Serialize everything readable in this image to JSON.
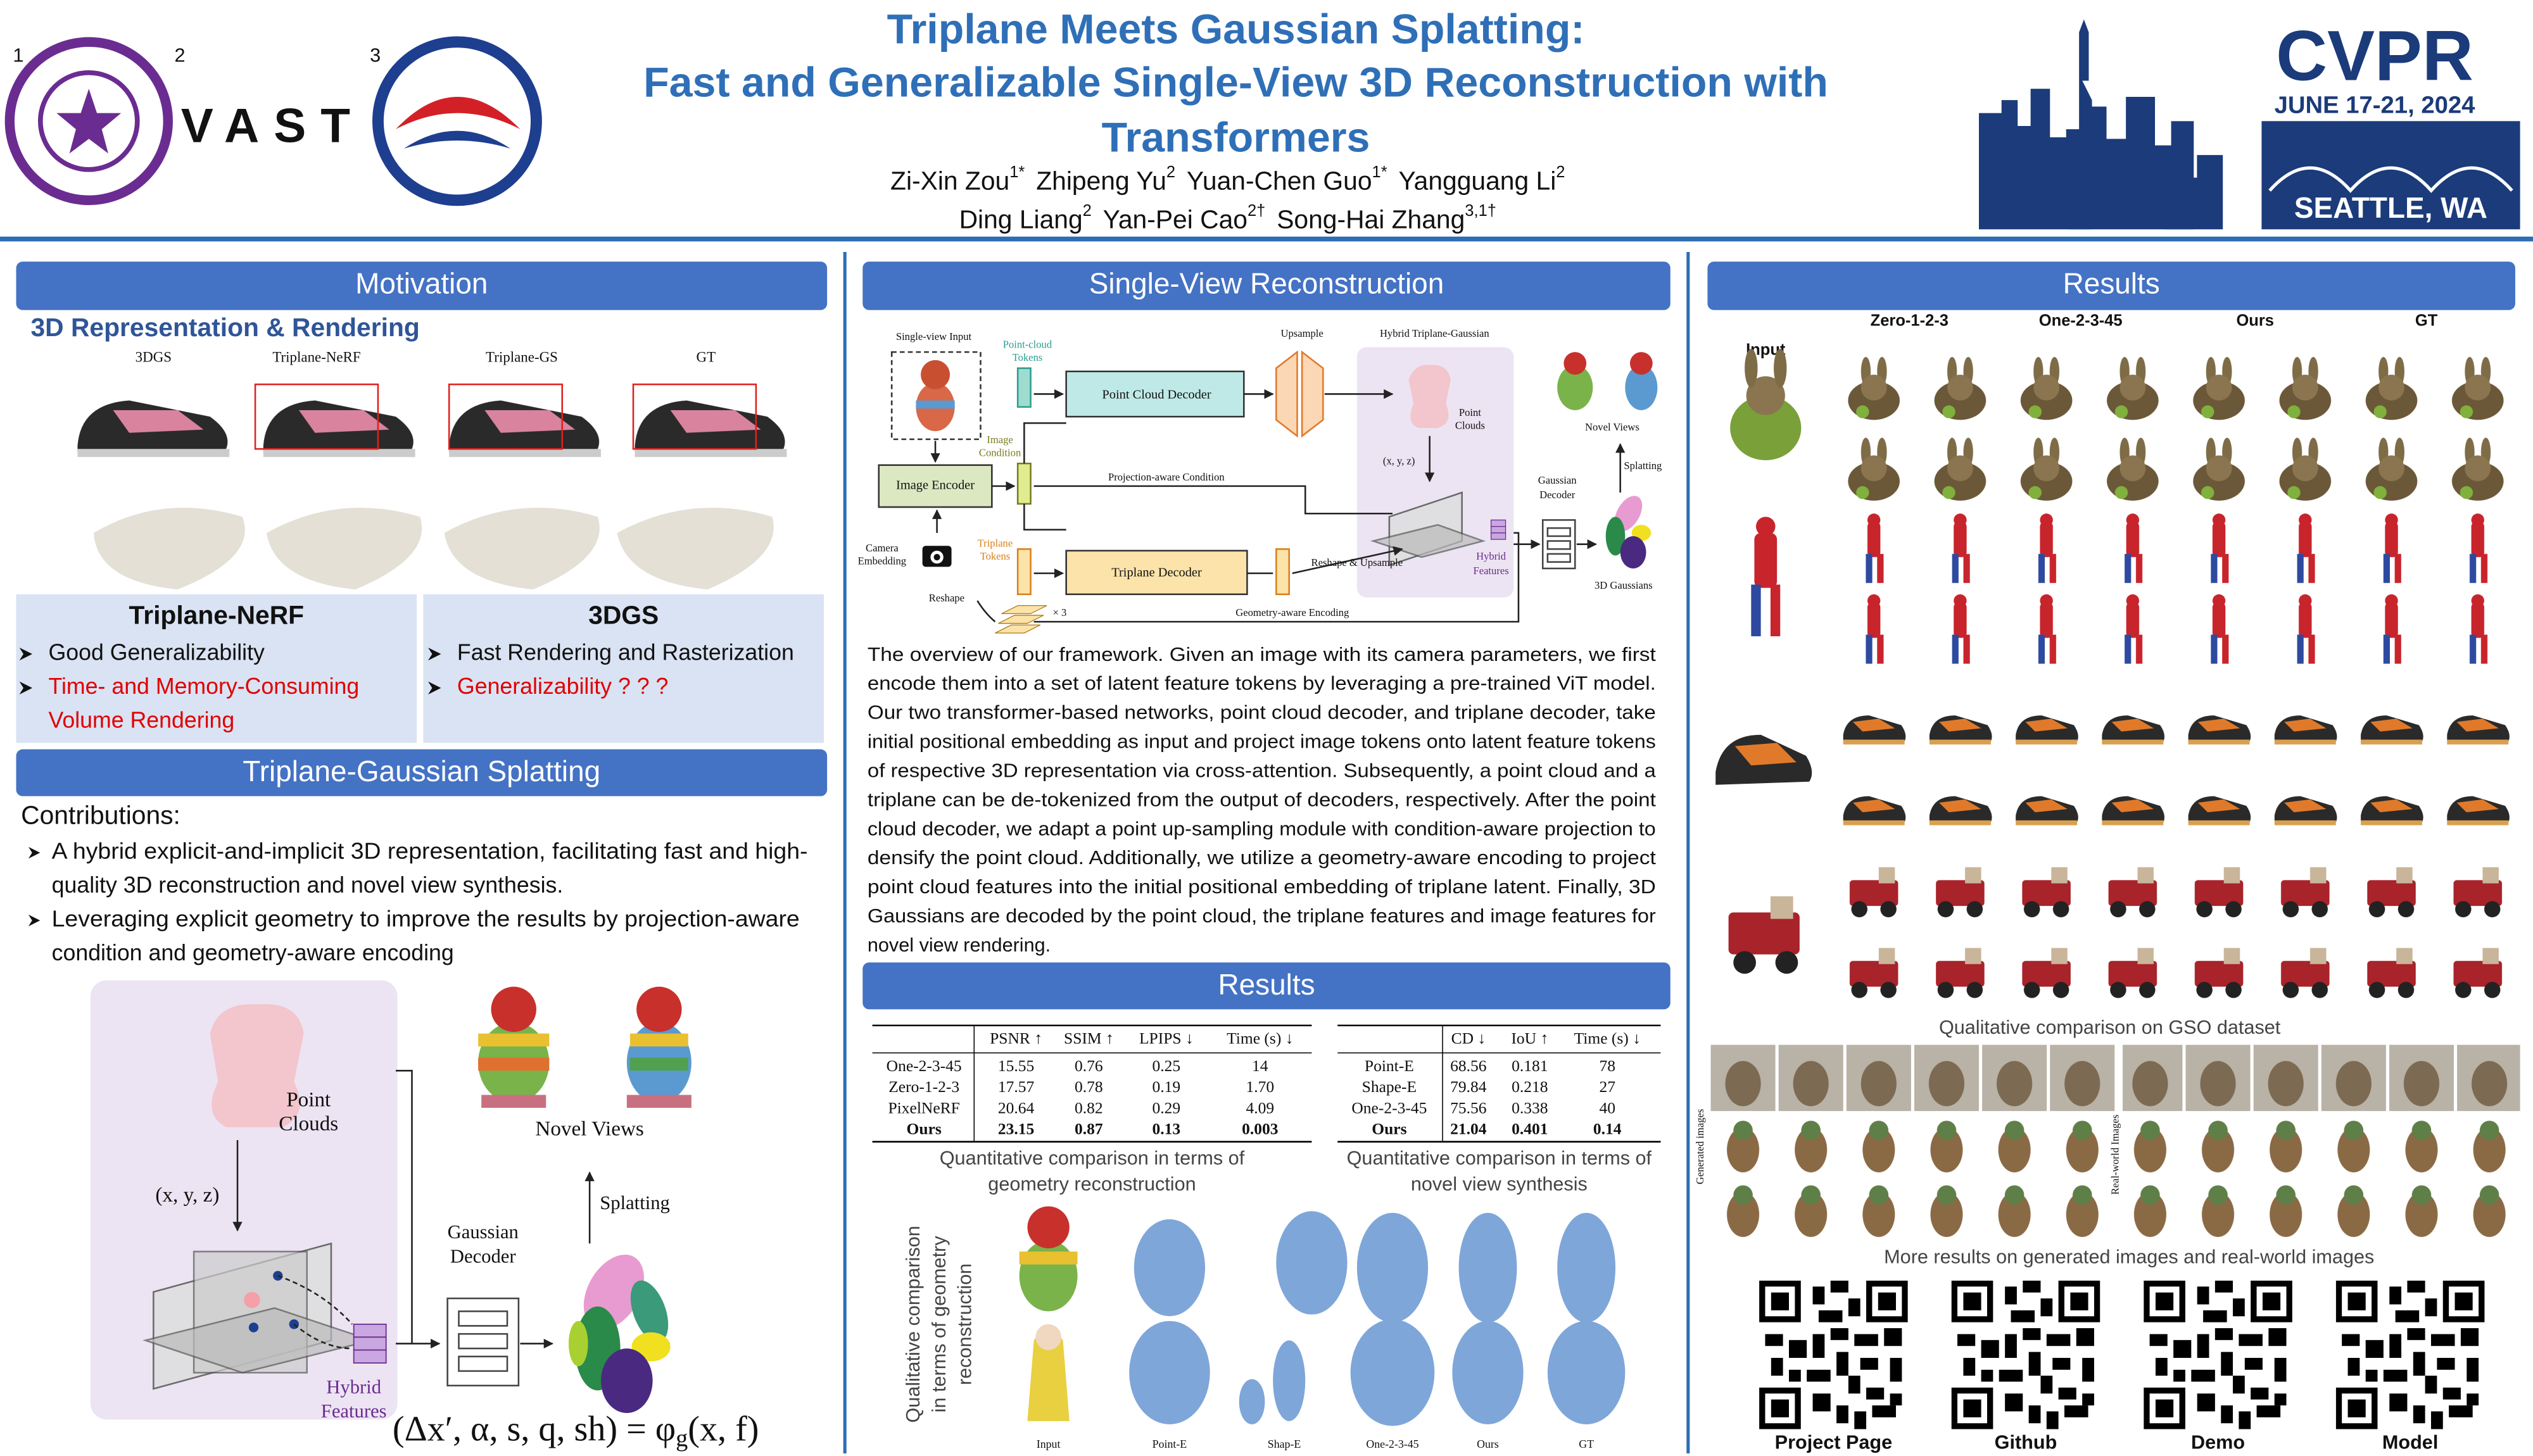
{
  "header": {
    "title": [
      "Triplane Meets Gaussian Splatting:",
      "Fast and Generalizable Single-View 3D Reconstruction with",
      "Transformers"
    ],
    "authors": [
      [
        {
          "name": "Zi-Xin Zou",
          "aff": "1*"
        },
        {
          "name": "Zhipeng Yu",
          "aff": "2"
        },
        {
          "name": "Yuan-Chen Guo",
          "aff": "1*"
        },
        {
          "name": "Yangguang Li",
          "aff": "2"
        }
      ],
      [
        {
          "name": "Ding Liang",
          "aff": "2"
        },
        {
          "name": "Yan-Pei Cao",
          "aff": "2†"
        },
        {
          "name": "Song-Hai Zhang",
          "aff": "3,1†"
        }
      ]
    ],
    "affiliation_marks": [
      "1",
      "2",
      "3"
    ],
    "vast_logo": "VAST",
    "conference": {
      "name": "CVPR",
      "dates": "JUNE 17-21, 2024",
      "location": "SEATTLE, WA"
    }
  },
  "motivation": {
    "heading": "Motivation",
    "subheading": "3D Representation & Rendering",
    "image_labels": [
      "3DGS",
      "Triplane-NeRF",
      "Triplane-GS",
      "GT"
    ],
    "comparison": [
      {
        "title": "Triplane-NeRF",
        "pros": [
          [
            "Good Generalizability"
          ]
        ],
        "cons": [
          [
            "Time- and Memory-Consuming",
            "Volume Rendering"
          ]
        ]
      },
      {
        "title": "3DGS",
        "pros": [
          [
            "Fast Rendering and Rasterization"
          ]
        ],
        "cons": [
          [
            "Generalizability ? ? ?"
          ]
        ]
      }
    ]
  },
  "triplane_gaussian_splatting": {
    "heading": "Triplane-Gaussian Splatting",
    "contributions_label": "Contributions:",
    "contributions": [
      [
        "A hybrid explicit-and-implicit 3D representation, facilitating fast and high-",
        "quality 3D reconstruction and novel view synthesis."
      ],
      [
        "Leveraging explicit geometry to improve the results by projection-aware",
        "condition and geometry-aware encoding"
      ]
    ],
    "figure": {
      "point_clouds": [
        "Point",
        "Clouds"
      ],
      "coordinates": "(x, y, z)",
      "hybrid_features": [
        "Hybrid",
        "Features"
      ],
      "gaussian_decoder": [
        "Gaussian",
        "Decoder"
      ],
      "novel_views": "Novel Views",
      "splatting": "Splatting",
      "equation": {
        "lhs": "(Δx′, α, s, q, sh) = φ",
        "subscript": "g",
        "rhs": "(x, f)"
      }
    }
  },
  "single_view_reconstruction": {
    "heading": "Single-View Reconstruction",
    "diagram": {
      "single_view_input": "Single-view Input",
      "point_cloud_tokens": [
        "Point-cloud",
        "Tokens"
      ],
      "point_cloud_decoder": "Point Cloud Decoder",
      "upsample": "Upsample",
      "hybrid_triplane_gaussian": "Hybrid Triplane-Gaussian",
      "point_clouds": [
        "Point",
        "Clouds"
      ],
      "coordinates": "(x, y, z)",
      "hybrid_features": [
        "Hybrid",
        "Features"
      ],
      "image_condition": [
        "Image",
        "Condition"
      ],
      "image_encoder": "Image Encoder",
      "projection_aware_condition": "Projection-aware Condition",
      "camera_embedding": [
        "Camera",
        "Embedding"
      ],
      "triplane_tokens": [
        "Triplane",
        "Tokens"
      ],
      "triplane_decoder": "Triplane Decoder",
      "reshape_upsample": "Reshape & Upsample",
      "reshape": "Reshape",
      "triplane_count": "× 3",
      "geometry_aware_encoding": "Geometry-aware  Encoding",
      "novel_views": "Novel Views",
      "splatting": "Splatting",
      "gaussian_decoder": [
        "Gaussian",
        "Decoder"
      ],
      "gaussians": "3D Gaussians"
    },
    "description": [
      "The overview of our framework. Given an image with its camera parameters, we first",
      "encode them into a set of latent feature tokens by leveraging a pre-trained ViT model.",
      "Our two transformer-based networks, point cloud decoder, and triplane decoder, take",
      "initial positional embedding as input and project image tokens onto latent feature tokens",
      "of respective 3D representation via cross-attention. Subsequently, a point cloud and a",
      "triplane can be de-tokenized from the output of decoders, respectively. After the point",
      "cloud decoder, we adapt a point up-sampling module with condition-aware projection to",
      "densify the point cloud. Additionally, we utilize a geometry-aware encoding to project",
      "point cloud features into the initial positional embedding of triplane latent. Finally, 3D",
      "Gaussians are decoded by the point cloud, the triplane features and image features for",
      "novel view rendering."
    ]
  },
  "results_middle": {
    "heading": "Results",
    "tables": [
      {
        "metrics": [
          "PSNR ↑",
          "SSIM ↑",
          "LPIPS ↓",
          "Time (s) ↓"
        ],
        "rows": [
          {
            "method": "One-2-3-45",
            "values": [
              "15.55",
              "0.76",
              "0.25",
              "14"
            ]
          },
          {
            "method": "Zero-1-2-3",
            "values": [
              "17.57",
              "0.78",
              "0.19",
              "1.70"
            ]
          },
          {
            "method": "PixelNeRF",
            "values": [
              "20.64",
              "0.82",
              "0.29",
              "4.09"
            ]
          },
          {
            "method": "Ours",
            "values": [
              "23.15",
              "0.87",
              "0.13",
              "0.003"
            ]
          }
        ],
        "caption": [
          "Quantitative comparison in terms of",
          "geometry reconstruction"
        ]
      },
      {
        "metrics": [
          "CD ↓",
          "IoU ↑",
          "Time (s) ↓"
        ],
        "rows": [
          {
            "method": "Point-E",
            "values": [
              "68.56",
              "0.181",
              "78"
            ]
          },
          {
            "method": "Shape-E",
            "values": [
              "79.84",
              "0.218",
              "27"
            ]
          },
          {
            "method": "One-2-3-45",
            "values": [
              "75.56",
              "0.338",
              "40"
            ]
          },
          {
            "method": "Ours",
            "values": [
              "21.04",
              "0.401",
              "0.14"
            ]
          }
        ],
        "caption": [
          "Quantitative comparison in terms of",
          "novel view synthesis"
        ]
      }
    ],
    "qualitative": {
      "caption": [
        "Qualitative comparison",
        "in terms of geometry",
        "reconstruction"
      ],
      "labels": [
        "Input",
        "Point-E",
        "Shap-E",
        "One-2-3-45",
        "Ours",
        "GT"
      ]
    }
  },
  "results_right": {
    "heading": "Results",
    "input_label": "Input",
    "methods": [
      "Zero-1-2-3",
      "One-2-3-45",
      "Ours",
      "GT"
    ],
    "gso_caption": "Qualitative comparison on GSO dataset",
    "side_labels": [
      "Generated images",
      "Real-world Images"
    ],
    "more_caption": "More results on generated images and real-world images",
    "links": [
      "Project Page",
      "Github",
      "Demo",
      "Model"
    ]
  }
}
